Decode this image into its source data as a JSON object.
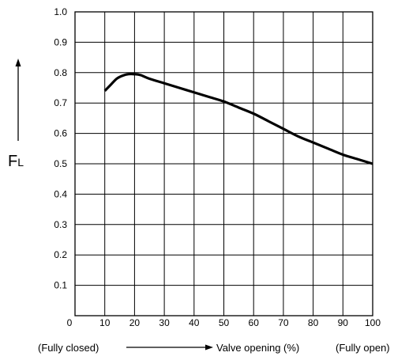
{
  "chart_data": {
    "type": "line",
    "xlim": [
      0,
      100
    ],
    "ylim": [
      0,
      1.0
    ],
    "grid": true,
    "x_ticks": [
      "0",
      "10",
      "20",
      "30",
      "40",
      "50",
      "60",
      "70",
      "80",
      "90",
      "100"
    ],
    "y_ticks": [
      "0.1",
      "0.2",
      "0.3",
      "0.4",
      "0.5",
      "0.6",
      "0.7",
      "0.8",
      "0.9",
      "1.0"
    ],
    "ylabel_main": "F",
    "ylabel_sub": "L",
    "xlabel_left": "(Fully closed)",
    "xlabel_center": "Valve opening (%)",
    "xlabel_right": "(Fully open)",
    "series": [
      {
        "x": [
          10,
          12,
          14,
          16,
          18,
          20,
          22,
          25,
          30,
          35,
          40,
          45,
          50,
          55,
          60,
          65,
          70,
          75,
          80,
          85,
          90,
          95,
          100
        ],
        "y": [
          0.74,
          0.76,
          0.78,
          0.79,
          0.795,
          0.795,
          0.792,
          0.78,
          0.765,
          0.75,
          0.735,
          0.72,
          0.705,
          0.685,
          0.665,
          0.64,
          0.615,
          0.59,
          0.57,
          0.55,
          0.53,
          0.515,
          0.5
        ]
      }
    ]
  }
}
